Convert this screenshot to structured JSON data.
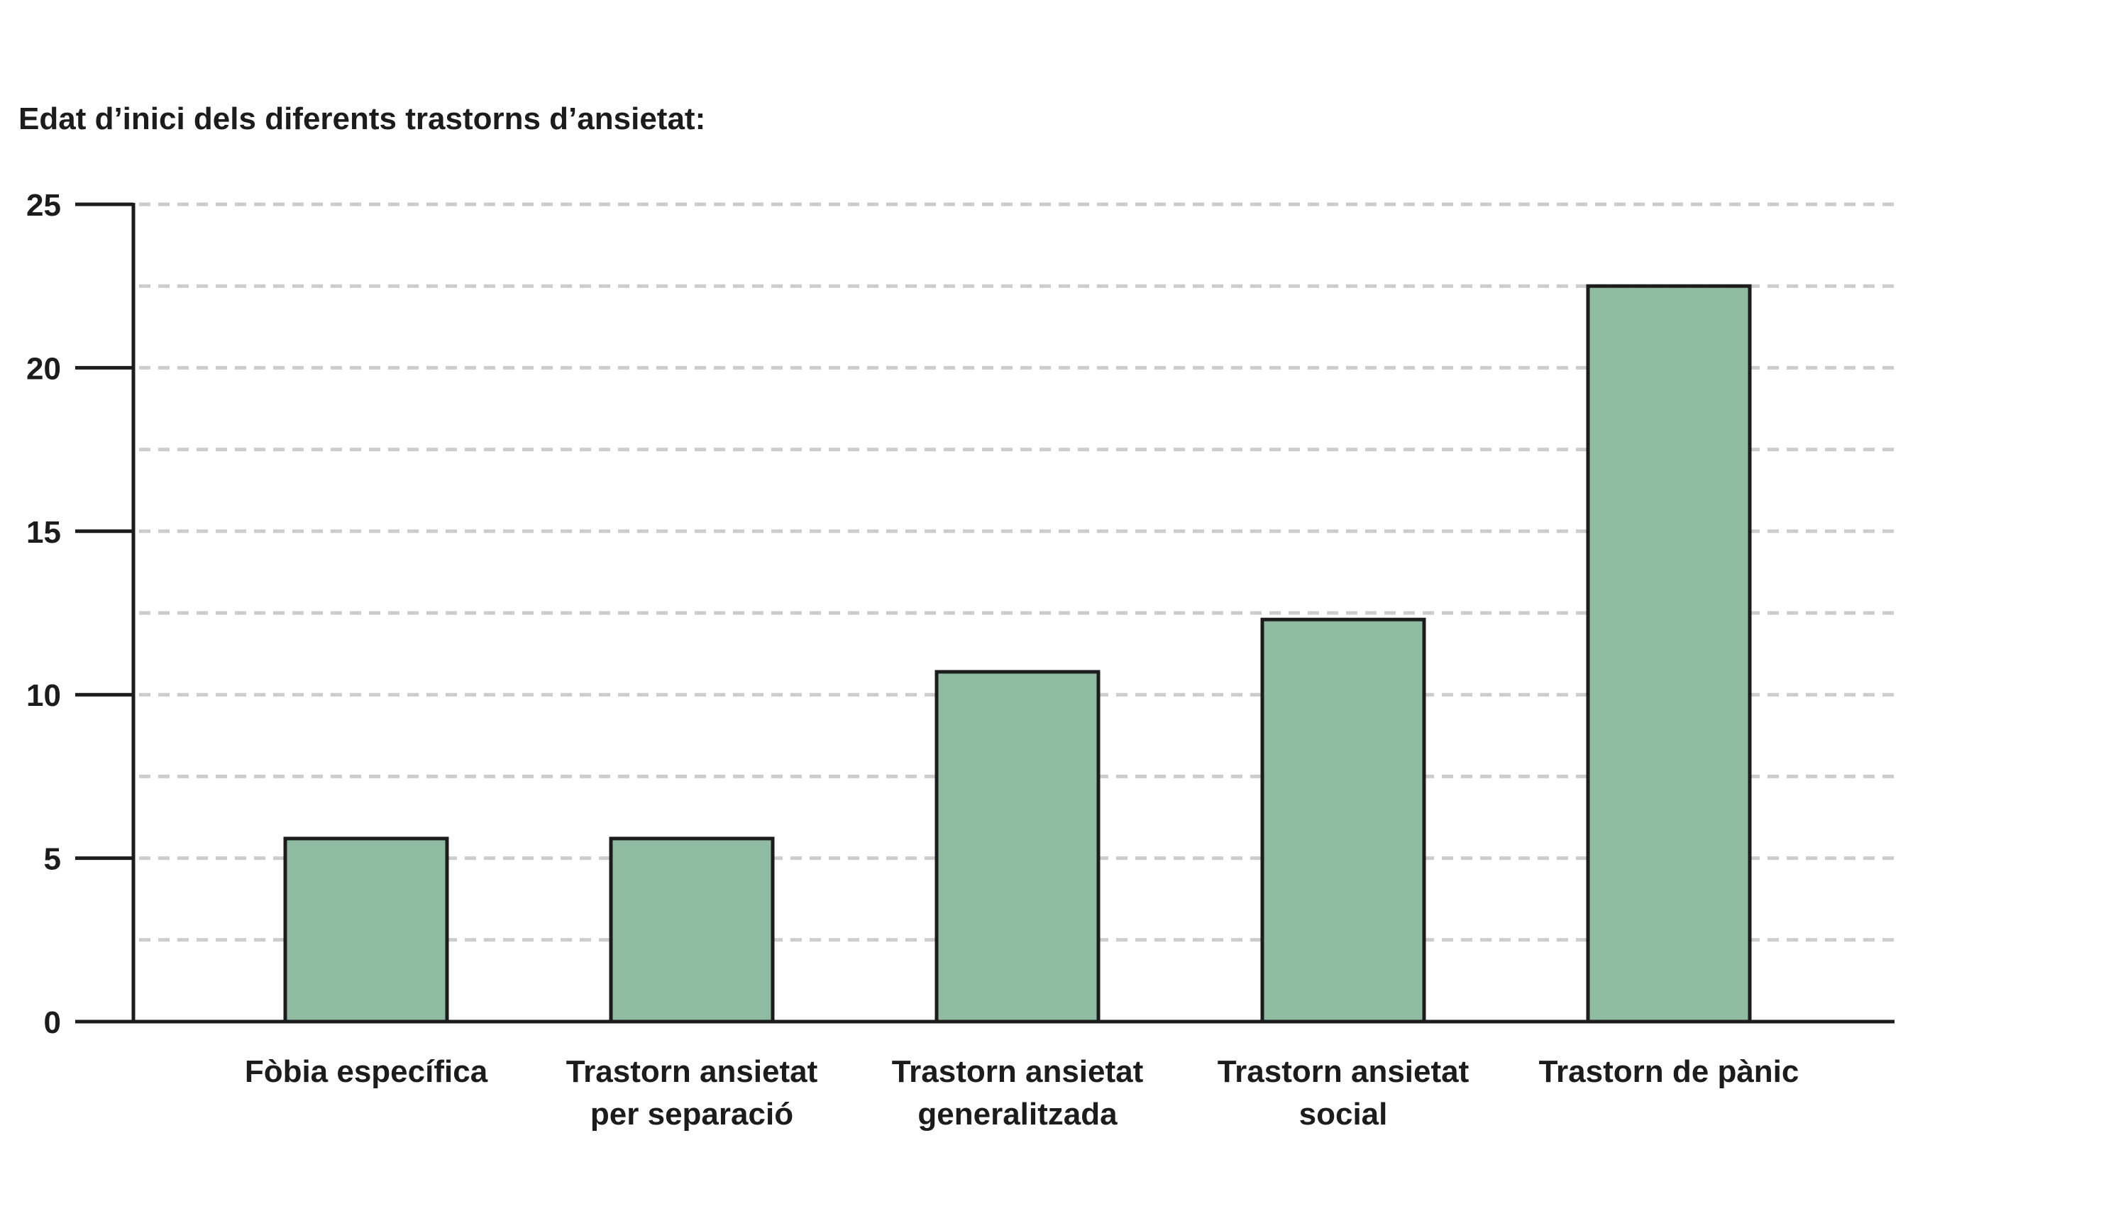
{
  "chart_data": {
    "type": "bar",
    "title": "Edat d’inici dels diferents trastorns d’ansietat:",
    "xlabel": "",
    "ylabel": "",
    "categories": [
      [
        "Fòbia específica"
      ],
      [
        "Trastorn ansietat",
        "per separació"
      ],
      [
        "Trastorn ansietat",
        "generalitzada"
      ],
      [
        "Trastorn ansietat",
        "social"
      ],
      [
        "Trastorn de pànic"
      ]
    ],
    "values": [
      5.6,
      5.6,
      10.7,
      12.3,
      22.5
    ],
    "ylim": [
      0,
      25
    ],
    "yticks": [
      "0",
      "5",
      "10",
      "15",
      "20",
      "25"
    ],
    "minor_gridlines": [
      2.5,
      7.5,
      12.5,
      17.5,
      22.5
    ],
    "grid": true,
    "legend": "none",
    "colors": {
      "bar_fill": "#8fbba2",
      "bar_outline": "#1c1c1c",
      "grid": "#cccccc",
      "text": "#1c1c1c"
    }
  }
}
